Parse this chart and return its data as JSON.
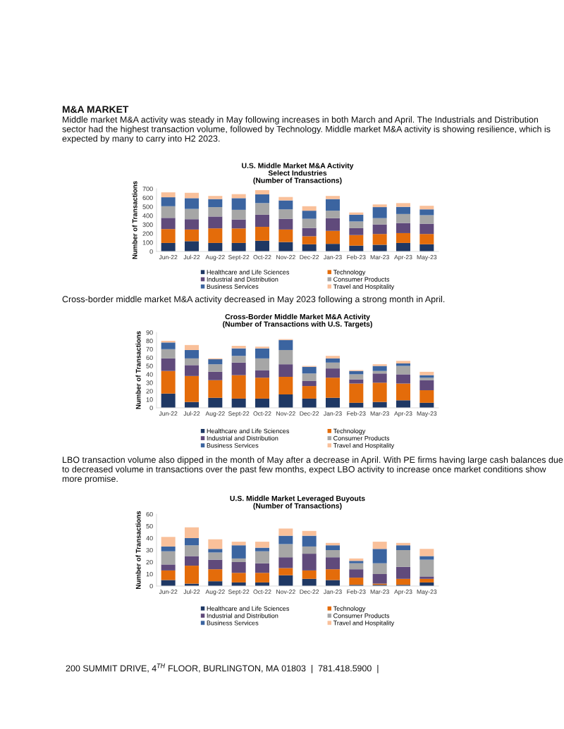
{
  "chart_data": [
    {
      "type": "bar",
      "stacked": true,
      "title": "U.S. Middle Market M&A Activity\nSelect Industries\n(Number of Transactions)",
      "ylabel": "Number of Transactions",
      "categories": [
        "Jun-22",
        "Jul-22",
        "Aug-22",
        "Sept-22",
        "Oct-22",
        "Nov-22",
        "Dec-22",
        "Jan-23",
        "Feb-23",
        "Mar-23",
        "Apr-23",
        "May-23"
      ],
      "series": [
        {
          "name": "Healthcare and Life Sciences",
          "color": "#1f3864",
          "values": [
            95,
            115,
            95,
            95,
            120,
            105,
            80,
            85,
            65,
            75,
            95,
            80
          ]
        },
        {
          "name": "Technology",
          "color": "#e46c0a",
          "values": [
            155,
            130,
            163,
            162,
            155,
            140,
            90,
            145,
            118,
            120,
            110,
            115
          ]
        },
        {
          "name": "Industrial and Distribution",
          "color": "#604a7b",
          "values": [
            125,
            115,
            132,
            100,
            135,
            120,
            92,
            142,
            77,
            107,
            113,
            115
          ]
        },
        {
          "name": "Consumer Products",
          "color": "#a6a6a6",
          "values": [
            130,
            115,
            105,
            108,
            130,
            105,
            103,
            83,
            75,
            70,
            100,
            95
          ]
        },
        {
          "name": "Business Services",
          "color": "#3b64a0",
          "values": [
            100,
            120,
            90,
            130,
            97,
            100,
            90,
            130,
            75,
            123,
            80,
            65
          ]
        },
        {
          "name": "Travel and Hospitality",
          "color": "#f9c09a",
          "values": [
            55,
            60,
            35,
            45,
            48,
            38,
            50,
            35,
            25,
            30,
            42,
            40
          ]
        }
      ],
      "ylim": [
        0,
        700
      ],
      "yticks": [
        0,
        100,
        200,
        300,
        400,
        500,
        600,
        700
      ],
      "grid": false,
      "legend": "bottom",
      "annotations": [
        "M&A MARKET",
        "Middle market M&A activity was steady in May following increases in both March and April. The Industrials and Distribution sector had the highest transaction volume, followed by Technology. Middle market M&A activity is showing resilience, which is expected by many to carry into H2 2023."
      ]
    },
    {
      "type": "bar",
      "stacked": true,
      "title": "Cross-Border Middle Market M&A Activity\n(Number of Transactions with U.S. Targets)",
      "ylabel": "Number of Transactions",
      "categories": [
        "Jun-22",
        "Jul-22",
        "Aug-22",
        "Sept-22",
        "Oct-22",
        "Nov-22",
        "Dec-22",
        "Jan-23",
        "Feb-23",
        "Mar-23",
        "Apr-23",
        "May-23"
      ],
      "series": [
        {
          "name": "Healthcare and Life Sciences",
          "color": "#1f3864",
          "values": [
            17,
            7,
            12,
            11,
            11,
            16,
            11,
            12,
            6,
            7,
            9,
            6
          ]
        },
        {
          "name": "Technology",
          "color": "#e46c0a",
          "values": [
            27,
            31,
            21,
            28,
            25,
            21,
            15,
            24,
            23,
            23,
            20,
            15
          ]
        },
        {
          "name": "Industrial and Distribution",
          "color": "#604a7b",
          "values": [
            15,
            13,
            10,
            15,
            9,
            15,
            6,
            11,
            5,
            11,
            11,
            12
          ]
        },
        {
          "name": "Consumer Products",
          "color": "#a6a6a6",
          "values": [
            11,
            8,
            9,
            8,
            14,
            17,
            9,
            7,
            6,
            3,
            10,
            3
          ]
        },
        {
          "name": "Business Services",
          "color": "#3b64a0",
          "values": [
            8,
            10,
            6,
            9,
            12,
            12,
            8,
            5,
            4,
            6,
            3,
            3
          ]
        },
        {
          "name": "Travel and Hospitality",
          "color": "#f9c09a",
          "values": [
            2,
            6,
            1,
            3,
            2,
            1,
            1,
            3,
            1,
            2,
            3,
            4
          ]
        }
      ],
      "ylim": [
        0,
        90
      ],
      "yticks": [
        0,
        10,
        20,
        30,
        40,
        50,
        60,
        70,
        80,
        90
      ],
      "grid": false,
      "legend": "bottom",
      "annotations": [
        "Cross-border middle market M&A activity decreased in May 2023 following a strong month in April."
      ]
    },
    {
      "type": "bar",
      "stacked": true,
      "title": "U.S. Middle Market Leveraged Buyouts\n(Number of Transactions)",
      "ylabel": "Number of Transactions",
      "categories": [
        "Jun-22",
        "Jul-22",
        "Aug-22",
        "Sept-22",
        "Oct-22",
        "Nov-22",
        "Dec-22",
        "Jan-23",
        "Feb-23",
        "Mar-23",
        "Apr-23",
        "May-23"
      ],
      "series": [
        {
          "name": "Healthcare and Life Sciences",
          "color": "#1f3864",
          "values": [
            5,
            2,
            4,
            3,
            3,
            9,
            6,
            5,
            1,
            1,
            1,
            3
          ]
        },
        {
          "name": "Technology",
          "color": "#e46c0a",
          "values": [
            8,
            15,
            10,
            8,
            8,
            6,
            7,
            9,
            6,
            1,
            5,
            3
          ]
        },
        {
          "name": "Industrial and Distribution",
          "color": "#604a7b",
          "values": [
            5,
            8,
            8,
            9,
            8,
            9,
            14,
            10,
            7,
            8,
            10,
            2
          ]
        },
        {
          "name": "Consumer Products",
          "color": "#a6a6a6",
          "values": [
            11,
            9,
            6,
            3,
            10,
            11,
            6,
            6,
            5,
            9,
            14,
            14
          ]
        },
        {
          "name": "Business Services",
          "color": "#3b64a0",
          "values": [
            4,
            6,
            3,
            11,
            3,
            7,
            9,
            4,
            2,
            12,
            4,
            3
          ]
        },
        {
          "name": "Travel and Hospitality",
          "color": "#f9c09a",
          "values": [
            8,
            9,
            8,
            3,
            5,
            6,
            4,
            2,
            2,
            6,
            2,
            6
          ]
        }
      ],
      "ylim": [
        0,
        60
      ],
      "yticks": [
        0,
        10,
        20,
        30,
        40,
        50,
        60
      ],
      "grid": false,
      "legend": "bottom",
      "annotations": [
        "LBO transaction volume also dipped in the month of May after a decrease in April. With PE firms having large cash balances due to decreased volume in transactions over the past few months, expect LBO activity to increase once market conditions show more promise.",
        "200 SUMMIT DRIVE, 4$^{TH}$ FLOOR, BURLINGTON, MA 01803  |  781.418.5900  |"
      ]
    }
  ]
}
